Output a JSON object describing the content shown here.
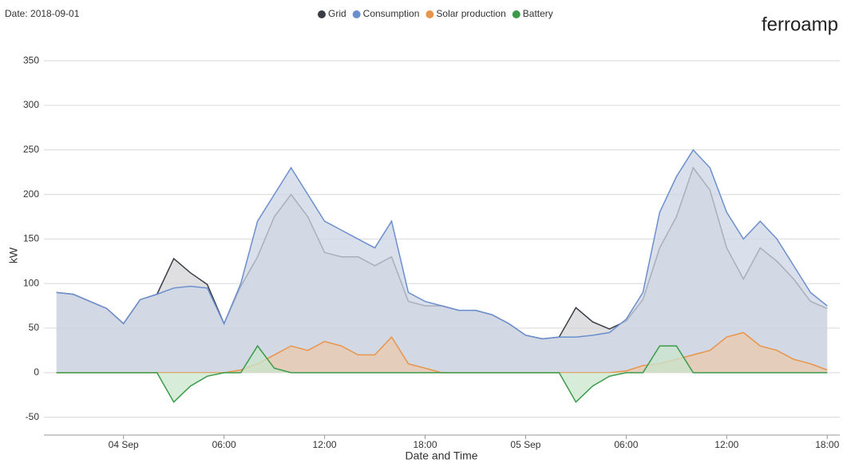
{
  "header": {
    "date": "Date: 2018-09-01",
    "brand": "ferroamp"
  },
  "chart_data": {
    "type": "line",
    "x_label": "Date and Time",
    "y_label": "kW",
    "x": [
      "03 Sep 20:00",
      "03 Sep 21:00",
      "03 Sep 22:00",
      "03 Sep 23:00",
      "04 Sep 00:00",
      "04 Sep 01:00",
      "04 Sep 02:00",
      "04 Sep 03:00",
      "04 Sep 04:00",
      "04 Sep 05:00",
      "04 Sep 06:00",
      "04 Sep 07:00",
      "04 Sep 08:00",
      "04 Sep 09:00",
      "04 Sep 10:00",
      "04 Sep 11:00",
      "04 Sep 12:00",
      "04 Sep 13:00",
      "04 Sep 14:00",
      "04 Sep 15:00",
      "04 Sep 16:00",
      "04 Sep 17:00",
      "04 Sep 18:00",
      "04 Sep 19:00",
      "04 Sep 20:00",
      "04 Sep 21:00",
      "04 Sep 22:00",
      "04 Sep 23:00",
      "05 Sep 00:00",
      "05 Sep 01:00",
      "05 Sep 02:00",
      "05 Sep 03:00",
      "05 Sep 04:00",
      "05 Sep 05:00",
      "05 Sep 06:00",
      "05 Sep 07:00",
      "05 Sep 08:00",
      "05 Sep 09:00",
      "05 Sep 10:00",
      "05 Sep 11:00",
      "05 Sep 12:00",
      "05 Sep 13:00",
      "05 Sep 14:00",
      "05 Sep 15:00",
      "05 Sep 16:00",
      "05 Sep 17:00",
      "05 Sep 18:00"
    ],
    "series": [
      {
        "name": "Grid",
        "color": "#3a3d45",
        "fill": "#d4d4d8",
        "values": [
          90,
          88,
          80,
          72,
          55,
          82,
          88,
          128,
          112,
          99,
          55,
          97,
          130,
          175,
          200,
          175,
          135,
          130,
          130,
          120,
          130,
          80,
          75,
          75,
          70,
          70,
          65,
          55,
          42,
          38,
          40,
          73,
          57,
          49,
          58,
          82,
          140,
          175,
          230,
          205,
          140,
          105,
          140,
          125,
          105,
          80,
          72
        ]
      },
      {
        "name": "Consumption",
        "color": "#6b8fce",
        "fill": "#cdd5e4",
        "values": [
          90,
          88,
          80,
          72,
          55,
          82,
          88,
          95,
          97,
          95,
          55,
          100,
          170,
          200,
          230,
          200,
          170,
          160,
          150,
          140,
          170,
          90,
          80,
          75,
          70,
          70,
          65,
          55,
          42,
          38,
          40,
          40,
          42,
          45,
          60,
          90,
          180,
          220,
          250,
          230,
          180,
          150,
          170,
          150,
          120,
          90,
          75
        ]
      },
      {
        "name": "Solar production",
        "color": "#e8954a",
        "fill": "#e9c9ad",
        "values": [
          0,
          0,
          0,
          0,
          0,
          0,
          0,
          0,
          0,
          0,
          0,
          3,
          10,
          20,
          30,
          25,
          35,
          30,
          20,
          20,
          40,
          10,
          5,
          0,
          0,
          0,
          0,
          0,
          0,
          0,
          0,
          0,
          0,
          0,
          2,
          8,
          10,
          15,
          20,
          25,
          40,
          45,
          30,
          25,
          15,
          10,
          3
        ]
      },
      {
        "name": "Battery",
        "color": "#3a9a48",
        "fill": "#c9e6cc",
        "values": [
          0,
          0,
          0,
          0,
          0,
          0,
          0,
          -33,
          -15,
          -4,
          0,
          0,
          30,
          5,
          0,
          0,
          0,
          0,
          0,
          0,
          0,
          0,
          0,
          0,
          0,
          0,
          0,
          0,
          0,
          0,
          0,
          -33,
          -15,
          -4,
          0,
          0,
          30,
          30,
          0,
          0,
          0,
          0,
          0,
          0,
          0,
          0,
          0
        ]
      }
    ],
    "xlim": [
      "03 Sep 19:15",
      "05 Sep 18:45"
    ],
    "xticks": [
      {
        "value": "04 Sep 00:00",
        "label": "04 Sep"
      },
      {
        "value": "04 Sep 06:00",
        "label": "06:00"
      },
      {
        "value": "04 Sep 12:00",
        "label": "12:00"
      },
      {
        "value": "04 Sep 18:00",
        "label": "18:00"
      },
      {
        "value": "05 Sep 00:00",
        "label": "05 Sep"
      },
      {
        "value": "05 Sep 06:00",
        "label": "06:00"
      },
      {
        "value": "05 Sep 12:00",
        "label": "12:00"
      },
      {
        "value": "05 Sep 18:00",
        "label": "18:00"
      }
    ],
    "ylim": [
      -70,
      360
    ],
    "yticks": [
      -50,
      0,
      50,
      100,
      150,
      200,
      250,
      300,
      350
    ],
    "grid": true
  }
}
